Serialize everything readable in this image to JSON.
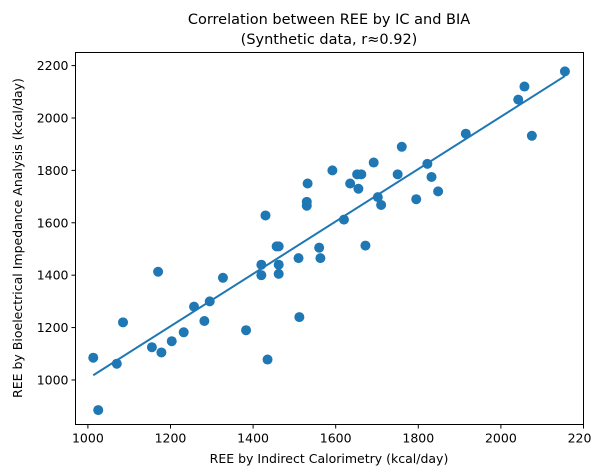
{
  "chart_data": {
    "type": "scatter",
    "title": "Correlation between REE by IC and BIA",
    "subtitle": "(Synthetic data, r≈0.92)",
    "xlabel": "REE by Indirect Calorimetry (kcal/day)",
    "ylabel": "REE by Bioelectrical Impedance Analysis (kcal/day)",
    "xlim": [
      970,
      2200
    ],
    "ylim": [
      830,
      2250
    ],
    "xticks": [
      1000,
      1200,
      1400,
      1600,
      1800,
      2000,
      2200
    ],
    "yticks": [
      1000,
      1200,
      1400,
      1600,
      1800,
      2000,
      2200
    ],
    "grid": false,
    "legend": "none",
    "colors": {
      "series": "#1f77b4"
    },
    "series": [
      {
        "points": [
          [
            1013,
            1085
          ],
          [
            1025,
            885
          ],
          [
            1070,
            1062
          ],
          [
            1085,
            1220
          ],
          [
            1155,
            1125
          ],
          [
            1170,
            1413
          ],
          [
            1178,
            1105
          ],
          [
            1203,
            1148
          ],
          [
            1232,
            1182
          ],
          [
            1257,
            1280
          ],
          [
            1282,
            1225
          ],
          [
            1295,
            1300
          ],
          [
            1327,
            1390
          ],
          [
            1383,
            1190
          ],
          [
            1420,
            1440
          ],
          [
            1420,
            1400
          ],
          [
            1430,
            1628
          ],
          [
            1435,
            1078
          ],
          [
            1457,
            1510
          ],
          [
            1462,
            1510
          ],
          [
            1462,
            1440
          ],
          [
            1462,
            1405
          ],
          [
            1510,
            1465
          ],
          [
            1512,
            1240
          ],
          [
            1530,
            1665
          ],
          [
            1530,
            1680
          ],
          [
            1532,
            1750
          ],
          [
            1560,
            1505
          ],
          [
            1563,
            1465
          ],
          [
            1592,
            1800
          ],
          [
            1620,
            1612
          ],
          [
            1635,
            1750
          ],
          [
            1652,
            1785
          ],
          [
            1655,
            1730
          ],
          [
            1662,
            1785
          ],
          [
            1672,
            1513
          ],
          [
            1692,
            1830
          ],
          [
            1702,
            1698
          ],
          [
            1710,
            1668
          ],
          [
            1750,
            1785
          ],
          [
            1760,
            1890
          ],
          [
            1795,
            1690
          ],
          [
            1822,
            1825
          ],
          [
            1832,
            1775
          ],
          [
            1848,
            1720
          ],
          [
            1915,
            1940
          ],
          [
            2042,
            2070
          ],
          [
            2057,
            2120
          ],
          [
            2075,
            1932
          ],
          [
            2155,
            2178
          ]
        ]
      }
    ],
    "fit_line": {
      "x": [
        1013,
        2155
      ],
      "y": [
        1018,
        2160
      ]
    }
  }
}
